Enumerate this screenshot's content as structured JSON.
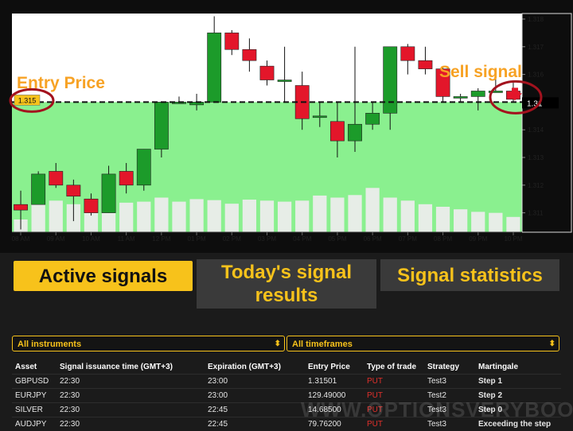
{
  "chart_data": {
    "type": "candlestick",
    "x_ticks": [
      "08 AM",
      "09 AM",
      "10 AM",
      "11 AM",
      "12 PM",
      "01 PM",
      "02 PM",
      "03 PM",
      "04 PM",
      "05 PM",
      "06 PM",
      "07 PM",
      "08 PM",
      "09 PM",
      "10 PM"
    ],
    "y_ticks": [
      "1.318",
      "1.317",
      "1.316",
      "1.315",
      "1.314",
      "1.313",
      "1.312",
      "1.311"
    ],
    "ylim": [
      1.3103,
      1.3182
    ],
    "current_price_label": "1.31",
    "entry_price_value": 1.315,
    "entry_price_label": "1.315",
    "annotations": {
      "entry": "Entry Price",
      "sell": "Sell signal"
    },
    "colors": {
      "up": "#1c9b2a",
      "down": "#e3162a",
      "zone": "#8af08f",
      "annotation": "#f7a224",
      "circle": "#a3121e"
    },
    "candles": [
      {
        "o": 1.3113,
        "h": 1.3118,
        "l": 1.3104,
        "c": 1.3111
      },
      {
        "o": 1.3113,
        "h": 1.3125,
        "l": 1.3113,
        "c": 1.3124
      },
      {
        "o": 1.3125,
        "h": 1.3128,
        "l": 1.3119,
        "c": 1.312
      },
      {
        "o": 1.312,
        "h": 1.3122,
        "l": 1.3107,
        "c": 1.3116
      },
      {
        "o": 1.3115,
        "h": 1.3117,
        "l": 1.3109,
        "c": 1.311
      },
      {
        "o": 1.311,
        "h": 1.3127,
        "l": 1.311,
        "c": 1.3124
      },
      {
        "o": 1.3125,
        "h": 1.3128,
        "l": 1.3117,
        "c": 1.312
      },
      {
        "o": 1.312,
        "h": 1.3133,
        "l": 1.3118,
        "c": 1.3133
      },
      {
        "o": 1.3133,
        "h": 1.315,
        "l": 1.313,
        "c": 1.315
      },
      {
        "o": 1.315,
        "h": 1.3152,
        "l": 1.315,
        "c": 1.315
      },
      {
        "o": 1.3149,
        "h": 1.3153,
        "l": 1.3147,
        "c": 1.315
      },
      {
        "o": 1.315,
        "h": 1.3181,
        "l": 1.315,
        "c": 1.3175
      },
      {
        "o": 1.3175,
        "h": 1.3176,
        "l": 1.3167,
        "c": 1.3169
      },
      {
        "o": 1.3169,
        "h": 1.3173,
        "l": 1.3161,
        "c": 1.3165
      },
      {
        "o": 1.3163,
        "h": 1.3165,
        "l": 1.3156,
        "c": 1.3158
      },
      {
        "o": 1.3158,
        "h": 1.317,
        "l": 1.315,
        "c": 1.3158
      },
      {
        "o": 1.3156,
        "h": 1.3161,
        "l": 1.314,
        "c": 1.3144
      },
      {
        "o": 1.3145,
        "h": 1.315,
        "l": 1.3141,
        "c": 1.3145
      },
      {
        "o": 1.3143,
        "h": 1.315,
        "l": 1.313,
        "c": 1.3136
      },
      {
        "o": 1.3136,
        "h": 1.317,
        "l": 1.3132,
        "c": 1.3142
      },
      {
        "o": 1.3142,
        "h": 1.315,
        "l": 1.314,
        "c": 1.3146
      },
      {
        "o": 1.3146,
        "h": 1.317,
        "l": 1.314,
        "c": 1.317
      },
      {
        "o": 1.317,
        "h": 1.3171,
        "l": 1.316,
        "c": 1.3165
      },
      {
        "o": 1.3165,
        "h": 1.317,
        "l": 1.316,
        "c": 1.3162
      },
      {
        "o": 1.3162,
        "h": 1.3163,
        "l": 1.315,
        "c": 1.3152
      },
      {
        "o": 1.3152,
        "h": 1.3153,
        "l": 1.315,
        "c": 1.3152
      },
      {
        "o": 1.3152,
        "h": 1.3155,
        "l": 1.3147,
        "c": 1.3154
      },
      {
        "o": 1.3154,
        "h": 1.316,
        "l": 1.3154,
        "c": 1.3154
      },
      {
        "o": 1.3154,
        "h": 1.3157,
        "l": 1.315,
        "c": 1.3151
      }
    ],
    "volume": [
      0.25,
      0.6,
      0.62,
      0.55,
      0.58,
      0.63,
      0.58,
      0.6,
      0.68,
      0.6,
      0.65,
      0.63,
      0.56,
      0.64,
      0.62,
      0.6,
      0.62,
      0.72,
      0.68,
      0.73,
      0.87,
      0.68,
      0.62,
      0.55,
      0.5,
      0.45,
      0.4,
      0.38,
      0.3
    ]
  },
  "tabs": [
    {
      "label": "Active signals",
      "active": true
    },
    {
      "label": "Today's signal results",
      "active": false
    },
    {
      "label": "Signal statistics",
      "active": false
    }
  ],
  "filters": {
    "instruments": "All instruments",
    "timeframes": "All timeframes"
  },
  "table": {
    "headers": [
      "Asset",
      "Signal issuance time (GMT+3)",
      "Expiration (GMT+3)",
      "Entry Price",
      "Type of trade",
      "Strategy",
      "Martingale"
    ],
    "rows": [
      [
        "GBPUSD",
        "22:30",
        "23:00",
        "1.31501",
        "PUT",
        "Test3",
        "Step 1"
      ],
      [
        "EURJPY",
        "22:30",
        "23:00",
        "129.49000",
        "PUT",
        "Test2",
        "Step 2"
      ],
      [
        "SILVER",
        "22:30",
        "22:45",
        "14.68500",
        "PUT",
        "Test3",
        "Step 0"
      ],
      [
        "AUDJPY",
        "22:30",
        "22:45",
        "79.76200",
        "PUT",
        "Test3",
        "Exceeding the step"
      ]
    ]
  },
  "watermark": "WWW.OPTIONSVERYBOOD.COM"
}
